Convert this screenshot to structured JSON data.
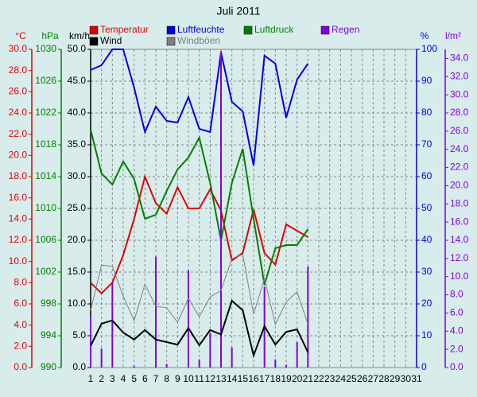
{
  "chart_data": {
    "type": "line",
    "title": "Juli 2011",
    "categories": [
      1,
      2,
      3,
      4,
      5,
      6,
      7,
      8,
      9,
      10,
      11,
      12,
      13,
      14,
      15,
      16,
      17,
      18,
      19,
      20,
      21,
      22,
      23,
      24,
      25,
      26,
      27,
      28,
      29,
      30,
      31
    ],
    "grid": true,
    "grid_axis": 2,
    "axes": [
      {
        "label": "°C",
        "color": "#e00000",
        "side": "left",
        "lim": [
          0,
          30
        ],
        "ticks": [
          {
            "value": 0,
            "label": "0.0"
          },
          {
            "value": 2,
            "label": "2.0"
          },
          {
            "value": 4,
            "label": "4.0"
          },
          {
            "value": 6,
            "label": "6.0"
          },
          {
            "value": 8,
            "label": "8.0"
          },
          {
            "value": 10,
            "label": "10.0"
          },
          {
            "value": 12,
            "label": "12.0"
          },
          {
            "value": 14,
            "label": "14.0"
          },
          {
            "value": 16,
            "label": "16.0"
          },
          {
            "value": 18,
            "label": "18.0"
          },
          {
            "value": 20,
            "label": "20.0"
          },
          {
            "value": 22,
            "label": "22.0"
          },
          {
            "value": 24,
            "label": "24.0"
          },
          {
            "value": 26,
            "label": "26.0"
          },
          {
            "value": 28,
            "label": "28.0"
          },
          {
            "value": 30,
            "label": "30.0"
          }
        ]
      },
      {
        "label": "hPa",
        "color": "#008000",
        "side": "left",
        "lim": [
          990,
          1030
        ],
        "ticks": [
          990,
          994,
          998,
          1002,
          1006,
          1010,
          1014,
          1018,
          1022,
          1026,
          1030
        ]
      },
      {
        "label": "km/h",
        "color": "#000000",
        "side": "left",
        "lim": [
          0,
          50
        ],
        "ticks": [
          {
            "value": 0,
            "label": "0.0"
          },
          {
            "value": 5,
            "label": "5.0"
          },
          {
            "value": 10,
            "label": "10.0"
          },
          {
            "value": 15,
            "label": "15.0"
          },
          {
            "value": 20,
            "label": "20.0"
          },
          {
            "value": 25,
            "label": "25.0"
          },
          {
            "value": 30,
            "label": "30.0"
          },
          {
            "value": 35,
            "label": "35.0"
          },
          {
            "value": 40,
            "label": "40.0"
          },
          {
            "value": 45,
            "label": "45.0"
          },
          {
            "value": 50,
            "label": "50.0"
          }
        ]
      },
      {
        "label": "%",
        "color": "#0000e0",
        "side": "right",
        "lim": [
          0,
          100
        ],
        "ticks": [
          0,
          10,
          20,
          30,
          40,
          50,
          60,
          70,
          80,
          90,
          100
        ]
      },
      {
        "label": "l/m²",
        "color": "#8000e0",
        "side": "right",
        "lim": [
          0,
          35
        ],
        "ticks": [
          {
            "value": 0,
            "label": "0.0"
          },
          {
            "value": 2,
            "label": "2.0"
          },
          {
            "value": 4,
            "label": "4.0"
          },
          {
            "value": 6,
            "label": "6.0"
          },
          {
            "value": 8,
            "label": "8.0"
          },
          {
            "value": 10,
            "label": "10.0"
          },
          {
            "value": 12,
            "label": "12.0"
          },
          {
            "value": 14,
            "label": "14.0"
          },
          {
            "value": 16,
            "label": "16.0"
          },
          {
            "value": 18,
            "label": "18.0"
          },
          {
            "value": 20,
            "label": "20.0"
          },
          {
            "value": 22,
            "label": "22.0"
          },
          {
            "value": 24,
            "label": "24.0"
          },
          {
            "value": 26,
            "label": "26.0"
          },
          {
            "value": 28,
            "label": "28.0"
          },
          {
            "value": 30,
            "label": "30.0"
          },
          {
            "value": 32,
            "label": "32.0"
          },
          {
            "value": 34,
            "label": "34.0"
          }
        ]
      }
    ],
    "series": [
      {
        "name": "Temperatur",
        "color": "#e00000",
        "axis": 0,
        "kind": "line",
        "width": 2,
        "values": [
          8.0,
          7.0,
          8.0,
          10.6,
          14.0,
          18.0,
          15.5,
          14.5,
          17.0,
          15.0,
          15.0,
          16.8,
          14.8,
          10.1,
          10.8,
          14.9,
          10.8,
          9.7,
          13.5,
          12.9,
          12.3,
          null,
          null,
          null,
          null,
          null,
          null,
          null,
          null,
          null,
          null
        ]
      },
      {
        "name": "Luftfeuchte",
        "color": "#0000e0",
        "axis": 3,
        "kind": "line",
        "width": 2,
        "values": [
          93.5,
          95,
          100,
          100,
          88,
          74,
          82,
          77.5,
          77,
          85,
          75,
          74,
          99,
          83.5,
          80.5,
          63.5,
          98,
          95.5,
          78.5,
          90.5,
          95.5,
          null,
          null,
          null,
          null,
          null,
          null,
          null,
          null,
          null,
          null
        ]
      },
      {
        "name": "Luftdruck",
        "color": "#008000",
        "axis": 1,
        "kind": "line",
        "width": 2,
        "values": [
          1019.9,
          1014.4,
          1013,
          1015.9,
          1013.7,
          1008.7,
          1009.2,
          1012.2,
          1014.9,
          1016.4,
          1018.9,
          1013.2,
          1006,
          1013.2,
          1017.5,
          1008.7,
          1000.4,
          1005,
          1005.4,
          1005.4,
          1007.4,
          null,
          null,
          null,
          null,
          null,
          null,
          null,
          null,
          null,
          null
        ]
      },
      {
        "name": "Regen",
        "color": "#8000e0",
        "axis": 4,
        "kind": "bar",
        "values": [
          5.6,
          2.1,
          9.4,
          0,
          0.2,
          0,
          12.2,
          0.4,
          0,
          10.7,
          0.9,
          3.8,
          34.8,
          2.2,
          0,
          0,
          8.9,
          0.9,
          0.3,
          2.8,
          11.1,
          null,
          null,
          null,
          null,
          null,
          null,
          null,
          null,
          null,
          null
        ]
      },
      {
        "name": "Wind",
        "color": "#000000",
        "axis": 2,
        "kind": "line",
        "width": 2,
        "values": [
          3.4,
          6.9,
          7.4,
          5.5,
          4.4,
          5.9,
          4.4,
          4.0,
          3.6,
          6.2,
          3.5,
          5.9,
          5.2,
          10.5,
          9.0,
          1.9,
          6.5,
          3.6,
          5.6,
          6.0,
          2.4,
          null,
          null,
          null,
          null,
          null,
          null,
          null,
          null,
          null,
          null
        ]
      },
      {
        "name": "Windböen",
        "color": "#808080",
        "axis": 2,
        "kind": "line",
        "width": 1,
        "values": [
          9.0,
          16.1,
          15.9,
          11.2,
          7.4,
          13.1,
          9.6,
          9.4,
          7.1,
          10.9,
          8.0,
          11.1,
          12.1,
          17.1,
          17.8,
          8.4,
          14.0,
          6.8,
          10.3,
          11.9,
          6.8,
          null,
          null,
          null,
          null,
          null,
          null,
          null,
          null,
          null,
          null
        ]
      }
    ]
  }
}
